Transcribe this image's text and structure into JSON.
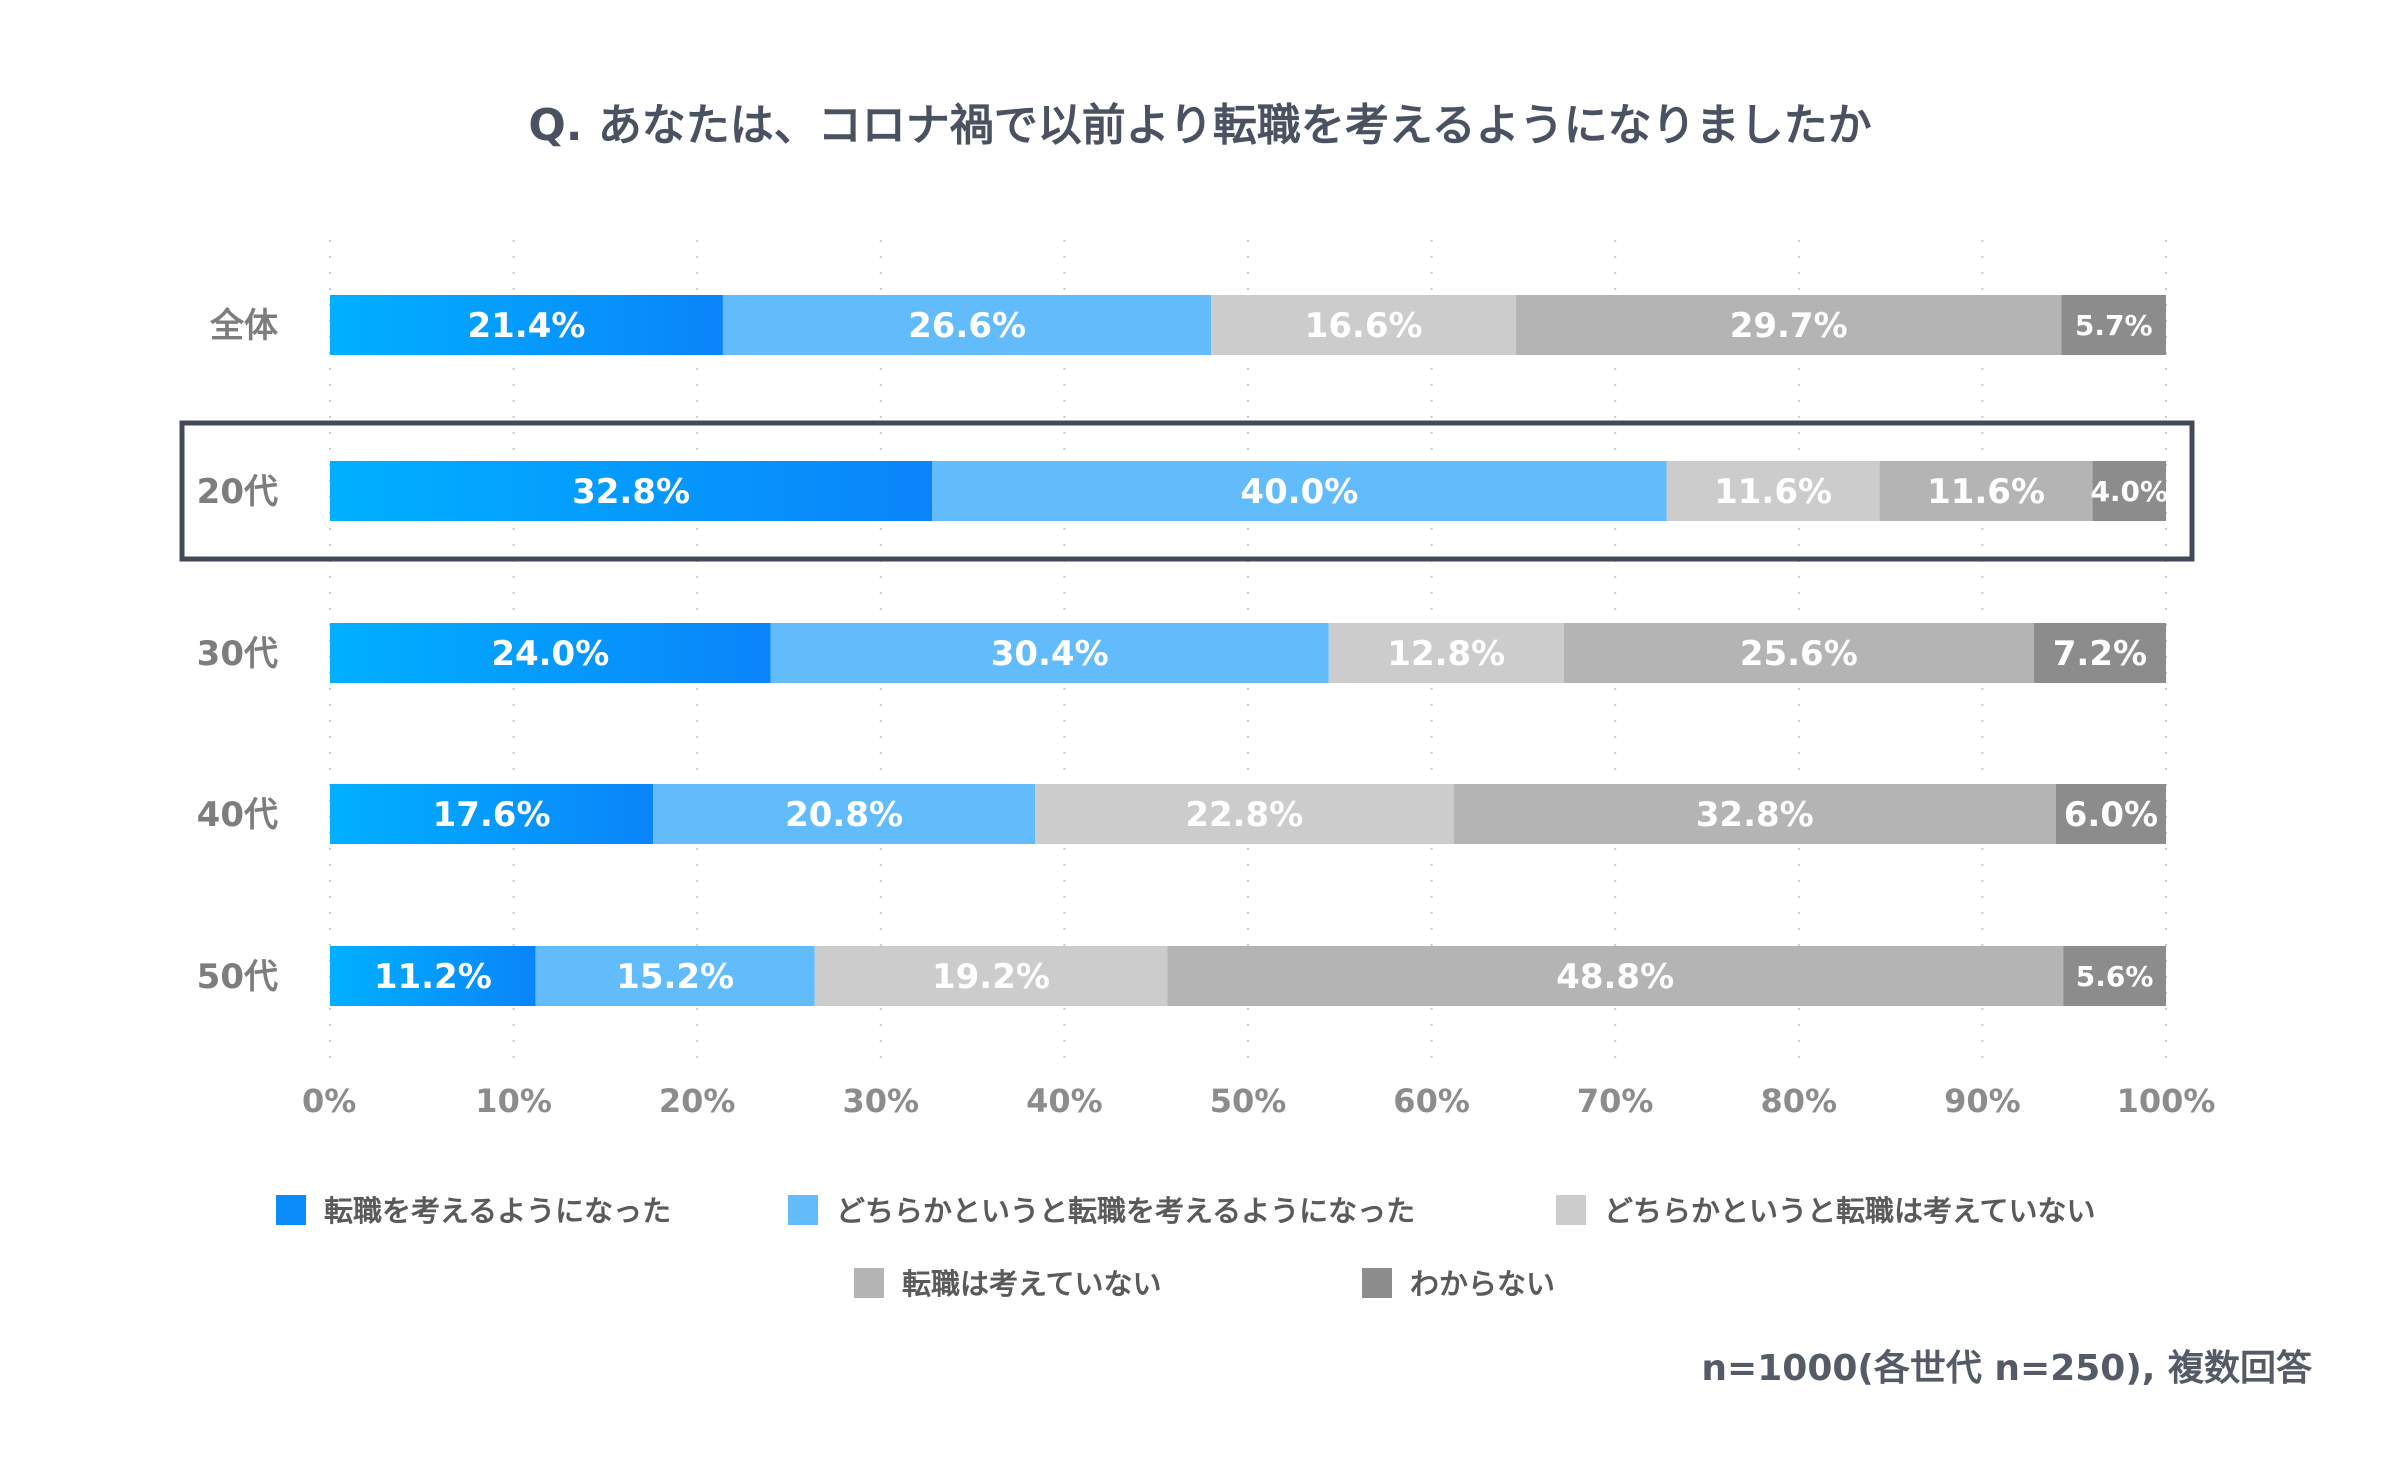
{
  "chart_data": {
    "type": "bar",
    "orientation": "horizontal",
    "stacked": true,
    "title": "Q. あなたは、コロナ禍で以前より転職を考えるようになりましたか",
    "categories": [
      "全体",
      "20代",
      "30代",
      "40代",
      "50代"
    ],
    "highlighted_category": "20代",
    "series": [
      {
        "name": "転職を考えるようになった",
        "color": "#0a8cfa",
        "values": [
          21.4,
          32.8,
          24.0,
          17.6,
          11.2
        ],
        "labels": [
          "21.4%",
          "32.8%",
          "24.0%",
          "17.6%",
          "11.2%"
        ]
      },
      {
        "name": "どちらかというと転職を考えるようになった",
        "color": "#62bcfc",
        "values": [
          26.6,
          40.0,
          30.4,
          20.8,
          15.2
        ],
        "labels": [
          "26.6%",
          "40.0%",
          "30.4%",
          "20.8%",
          "15.2%"
        ]
      },
      {
        "name": "どちらかというと転職は考えていない",
        "color": "#cccccc",
        "values": [
          16.6,
          11.6,
          12.8,
          22.8,
          19.2
        ],
        "labels": [
          "16.6%",
          "11.6%",
          "12.8%",
          "22.8%",
          "19.2%"
        ]
      },
      {
        "name": "転職は考えていない",
        "color": "#b4b4b4",
        "values": [
          29.7,
          11.6,
          25.6,
          32.8,
          48.8
        ],
        "labels": [
          "29.7%",
          "11.6%",
          "25.6%",
          "32.8%",
          "48.8%"
        ]
      },
      {
        "name": "わからない",
        "color": "#8c8c8c",
        "values": [
          5.7,
          4.0,
          7.2,
          6.0,
          5.6
        ],
        "labels": [
          "5.7%",
          "4.0%",
          "7.2%",
          "6.0%",
          "5.6%"
        ]
      }
    ],
    "x_ticks": [
      "0%",
      "10%",
      "20%",
      "30%",
      "40%",
      "50%",
      "60%",
      "70%",
      "80%",
      "90%",
      "100%"
    ],
    "xlim": [
      0,
      100
    ],
    "grid": true,
    "legend_position": "bottom",
    "note": "n=1000(各世代 n=250), 複数回答"
  }
}
